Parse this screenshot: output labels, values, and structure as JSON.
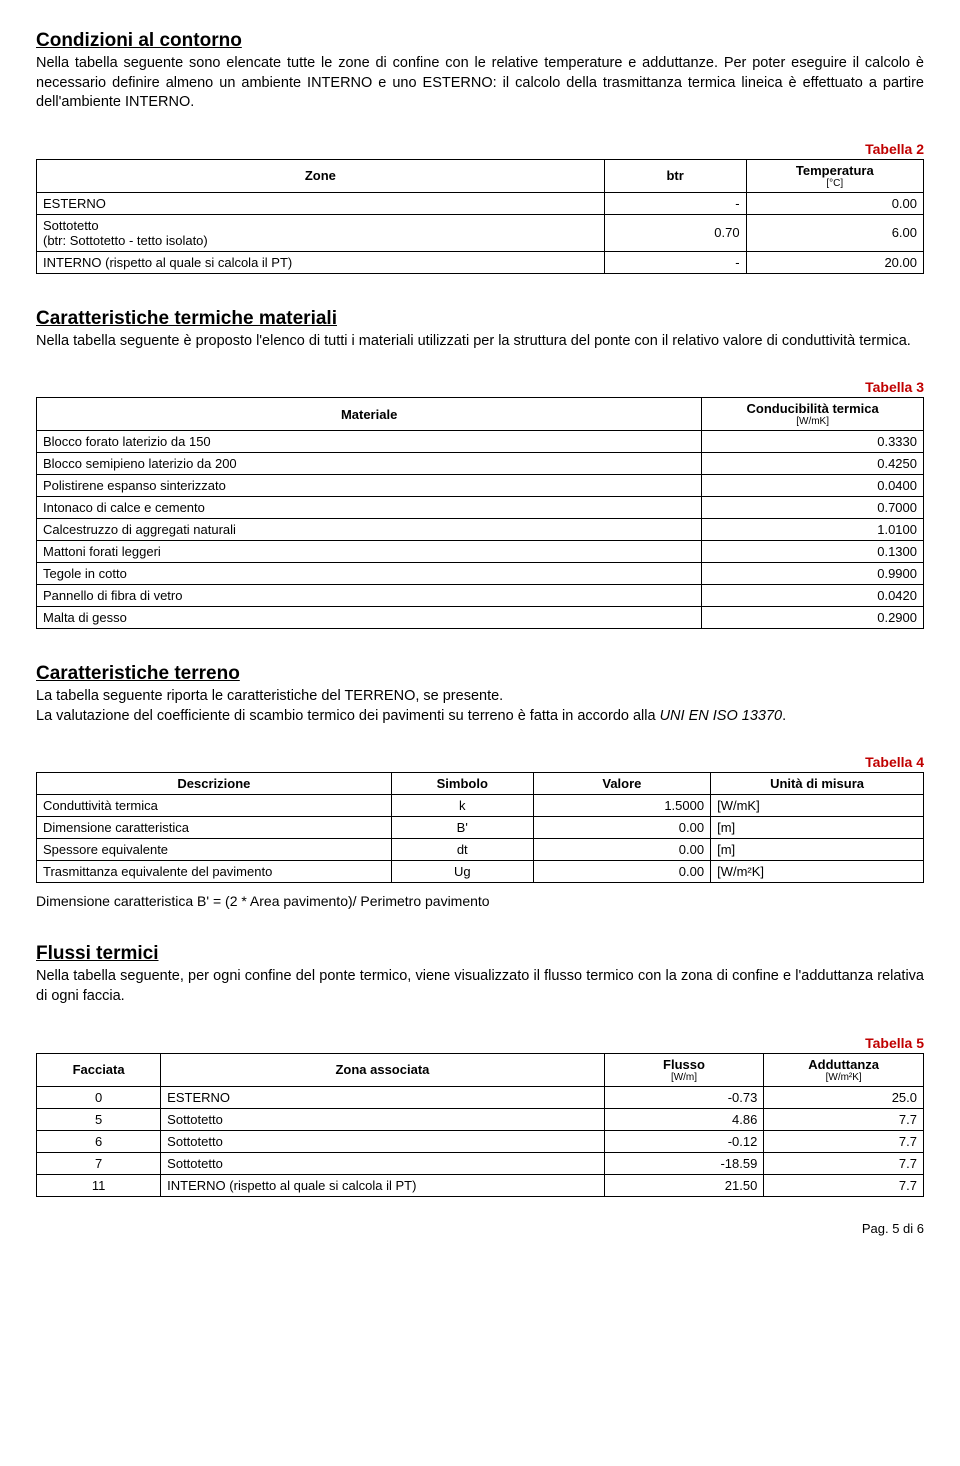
{
  "page": {
    "footer": "Pag. 5 di 6"
  },
  "s1": {
    "title": "Condizioni al contorno",
    "body": "Nella tabella seguente sono elencate tutte le zone di confine con le relative temperature e adduttanze. Per poter eseguire il calcolo è necessario definire almeno un ambiente INTERNO e uno ESTERNO: il calcolo della trasmittanza termica lineica è effettuato a partire dell'ambiente INTERNO."
  },
  "t2": {
    "label": "Tabella 2",
    "h_zone": "Zone",
    "h_btr": "btr",
    "h_temp": "Temperatura",
    "u_temp": "[°C]",
    "r0": {
      "zone": "ESTERNO",
      "btr": "-",
      "temp": "0.00"
    },
    "r1": {
      "zone_a": "Sottotetto",
      "zone_b": "(btr: Sottotetto - tetto isolato)",
      "btr": "0.70",
      "temp": "6.00"
    },
    "r2": {
      "zone": "INTERNO (rispetto al quale si calcola il PT)",
      "btr": "-",
      "temp": "20.00"
    }
  },
  "s2": {
    "title": "Caratteristiche termiche materiali",
    "body": "Nella tabella seguente è proposto l'elenco di tutti i materiali utilizzati per la struttura del ponte con il relativo valore di conduttività termica."
  },
  "t3": {
    "label": "Tabella 3",
    "h_mat": "Materiale",
    "h_cond": "Conducibilità termica",
    "u_cond": "[W/mK]",
    "rows": [
      {
        "m": "Blocco forato laterizio da 150",
        "c": "0.3330"
      },
      {
        "m": "Blocco semipieno laterizio da 200",
        "c": "0.4250"
      },
      {
        "m": "Polistirene espanso sinterizzato",
        "c": "0.0400"
      },
      {
        "m": "Intonaco di calce e cemento",
        "c": "0.7000"
      },
      {
        "m": "Calcestruzzo di aggregati naturali",
        "c": "1.0100"
      },
      {
        "m": "Mattoni forati leggeri",
        "c": "0.1300"
      },
      {
        "m": "Tegole in cotto",
        "c": "0.9900"
      },
      {
        "m": "Pannello di fibra di vetro",
        "c": "0.0420"
      },
      {
        "m": "Malta di gesso",
        "c": "0.2900"
      }
    ]
  },
  "s3": {
    "title": "Caratteristiche terreno",
    "body_a": "La tabella seguente riporta le caratteristiche del TERRENO, se presente.",
    "body_b_pre": "La valutazione del coefficiente di scambio termico dei pavimenti su terreno è fatta in accordo alla ",
    "body_b_em": "UNI EN ISO 13370",
    "body_b_post": "."
  },
  "t4": {
    "label": "Tabella 4",
    "h_desc": "Descrizione",
    "h_sym": "Simbolo",
    "h_val": "Valore",
    "h_unit": "Unità di misura",
    "rows": [
      {
        "d": "Conduttività termica",
        "s": "k",
        "v": "1.5000",
        "u": "[W/mK]"
      },
      {
        "d": "Dimensione caratteristica",
        "s": "B'",
        "v": "0.00",
        "u": "[m]"
      },
      {
        "d": "Spessore equivalente",
        "s": "dt",
        "v": "0.00",
        "u": "[m]"
      },
      {
        "d": "Trasmittanza equivalente del pavimento",
        "s": "Ug",
        "v": "0.00",
        "u": "[W/m²K]"
      }
    ],
    "note": "Dimensione caratteristica B' = (2 * Area pavimento)/ Perimetro pavimento"
  },
  "s4": {
    "title": "Flussi termici",
    "body": "Nella tabella seguente, per ogni confine del ponte termico, viene visualizzato il flusso termico con la zona di confine e l'adduttanza relativa di ogni faccia."
  },
  "t5": {
    "label": "Tabella 5",
    "h_fac": "Facciata",
    "h_zone": "Zona associata",
    "h_flux": "Flusso",
    "u_flux": "[W/m]",
    "h_add": "Adduttanza",
    "u_add": "[W/m²K]",
    "rows": [
      {
        "f": "0",
        "z": "ESTERNO",
        "fl": "-0.73",
        "a": "25.0"
      },
      {
        "f": "5",
        "z": "Sottotetto",
        "fl": "4.86",
        "a": "7.7"
      },
      {
        "f": "6",
        "z": "Sottotetto",
        "fl": "-0.12",
        "a": "7.7"
      },
      {
        "f": "7",
        "z": "Sottotetto",
        "fl": "-18.59",
        "a": "7.7"
      },
      {
        "f": "11",
        "z": "INTERNO (rispetto al quale si calcola il PT)",
        "fl": "21.50",
        "a": "7.7"
      }
    ]
  }
}
